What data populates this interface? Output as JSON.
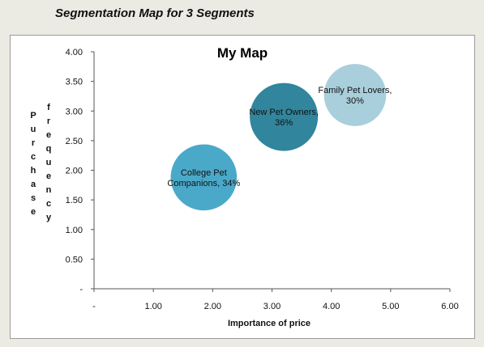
{
  "page": {
    "heading": "Segmentation Map for 3 Segments"
  },
  "chart_data": {
    "type": "scatter",
    "subtype": "bubble",
    "title": "My Map",
    "xlabel": "Importance of price",
    "ylabel_col1": [
      "P",
      "u",
      "r",
      "c",
      "h",
      "a",
      "s",
      "e"
    ],
    "ylabel_col2": [
      "f",
      "r",
      "e",
      "q",
      "u",
      "e",
      "n",
      "c",
      "y"
    ],
    "xlim": [
      0,
      6
    ],
    "ylim": [
      0,
      4
    ],
    "x_ticks": [
      {
        "v": 0,
        "label": "-"
      },
      {
        "v": 1,
        "label": "1.00"
      },
      {
        "v": 2,
        "label": "2.00"
      },
      {
        "v": 3,
        "label": "3.00"
      },
      {
        "v": 4,
        "label": "4.00"
      },
      {
        "v": 5,
        "label": "5.00"
      },
      {
        "v": 6,
        "label": "6.00"
      }
    ],
    "y_ticks": [
      {
        "v": 0,
        "label": "-"
      },
      {
        "v": 0.5,
        "label": "0.50"
      },
      {
        "v": 1,
        "label": "1.00"
      },
      {
        "v": 1.5,
        "label": "1.50"
      },
      {
        "v": 2,
        "label": "2.00"
      },
      {
        "v": 2.5,
        "label": "2.50"
      },
      {
        "v": 3,
        "label": "3.00"
      },
      {
        "v": 3.5,
        "label": "3.50"
      },
      {
        "v": 4,
        "label": "4.00"
      }
    ],
    "grid": false,
    "legend": "none",
    "series": [
      {
        "points": [
          {
            "x": 1.85,
            "y": 1.88,
            "size": 34,
            "label_lines": [
              "College Pet",
              "Companions, 34%"
            ],
            "color": "#4aa9c9"
          },
          {
            "x": 3.2,
            "y": 2.9,
            "size": 36,
            "label_lines": [
              "New Pet Owners,",
              "36%"
            ],
            "color": "#31859c"
          },
          {
            "x": 4.4,
            "y": 3.27,
            "size": 30,
            "label_lines": [
              "Family Pet Lovers,",
              "30%"
            ],
            "color": "#a9cfdc"
          }
        ]
      }
    ]
  }
}
